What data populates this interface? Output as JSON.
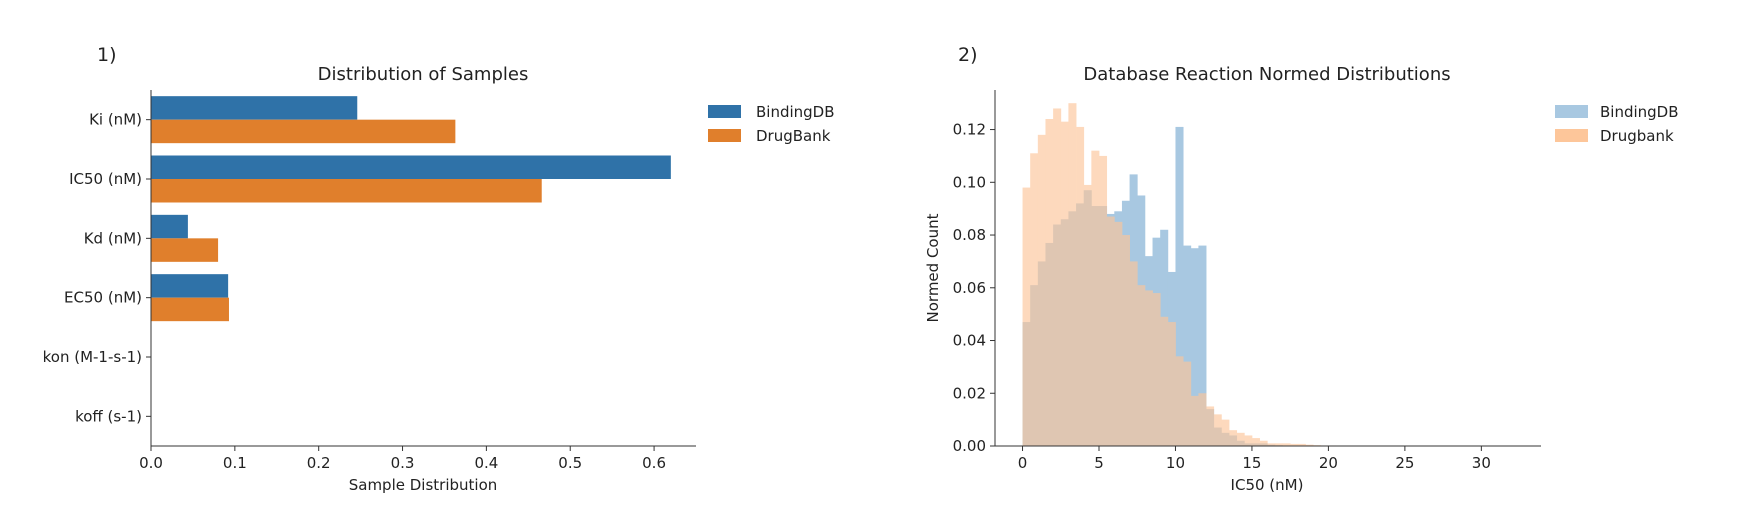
{
  "panels": [
    {
      "label": "1)"
    },
    {
      "label": "2)"
    }
  ],
  "chart_data": [
    {
      "type": "bar",
      "orientation": "horizontal",
      "title": "Distribution of Samples",
      "xlabel": "Sample Distribution",
      "ylabel": "",
      "categories": [
        "Ki (nM)",
        "IC50 (nM)",
        "Kd (nM)",
        "EC50 (nM)",
        "kon (M-1-s-1)",
        "koff (s-1)"
      ],
      "series": [
        {
          "name": "BindingDB",
          "color": "#2f72a8",
          "values": [
            0.246,
            0.62,
            0.044,
            0.092,
            0.0,
            0.0
          ]
        },
        {
          "name": "DrugBank",
          "color": "#e07f2c",
          "values": [
            0.363,
            0.466,
            0.08,
            0.093,
            0.0,
            0.0
          ]
        }
      ],
      "xlim": [
        0,
        0.65
      ],
      "xticks": [
        "0.0",
        "0.1",
        "0.2",
        "0.3",
        "0.4",
        "0.5",
        "0.6"
      ],
      "grid": false,
      "legend_position": "outside-top-right"
    },
    {
      "type": "histogram",
      "title": "Database Reaction Normed Distributions",
      "xlabel": "IC50 (nM)",
      "ylabel": "Normed Count",
      "bin_start": 0,
      "bin_width": 0.5,
      "series": [
        {
          "name": "BindingDB",
          "color": "#a8c8e1",
          "values": [
            0.047,
            0.061,
            0.07,
            0.077,
            0.084,
            0.086,
            0.089,
            0.092,
            0.097,
            0.091,
            0.091,
            0.088,
            0.089,
            0.093,
            0.103,
            0.095,
            0.072,
            0.079,
            0.082,
            0.066,
            0.121,
            0.076,
            0.075,
            0.076,
            0.014,
            0.007,
            0.005,
            0.004,
            0.002,
            0.001,
            0.001,
            0.001,
            0.0005,
            0.0003,
            0.0002,
            0.0002,
            0.0001,
            0.0001,
            0.0001,
            0.0001
          ]
        },
        {
          "name": "Drugbank",
          "color": "#fdc69a",
          "values": [
            0.098,
            0.111,
            0.118,
            0.124,
            0.128,
            0.123,
            0.13,
            0.121,
            0.099,
            0.112,
            0.11,
            0.087,
            0.085,
            0.08,
            0.07,
            0.061,
            0.059,
            0.058,
            0.049,
            0.047,
            0.034,
            0.032,
            0.019,
            0.02,
            0.015,
            0.012,
            0.01,
            0.006,
            0.005,
            0.004,
            0.003,
            0.002,
            0.001,
            0.001,
            0.001,
            0.0008,
            0.0008,
            0.0005,
            0.0003,
            0.0002,
            0.0002,
            0.0001,
            0.0001,
            0.0001,
            0.0001
          ]
        }
      ],
      "xlim": [
        -1.8,
        33.9
      ],
      "ylim": [
        0,
        0.135
      ],
      "xticks": [
        "0",
        "5",
        "10",
        "15",
        "20",
        "25",
        "30"
      ],
      "yticks": [
        "0.00",
        "0.02",
        "0.04",
        "0.06",
        "0.08",
        "0.10",
        "0.12"
      ],
      "grid": false,
      "legend_position": "outside-top-right"
    }
  ]
}
